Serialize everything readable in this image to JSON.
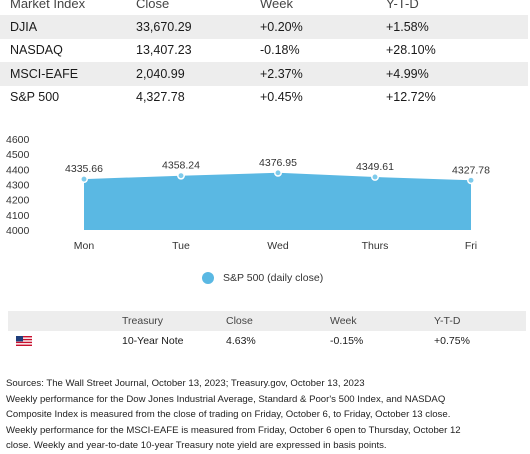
{
  "market_table": {
    "headers": [
      "Market Index",
      "Close",
      "Week",
      "Y-T-D"
    ],
    "rows": [
      {
        "index": "DJIA",
        "close": "33,670.29",
        "week": "+0.20%",
        "ytd": "+1.58%"
      },
      {
        "index": "NASDAQ",
        "close": "13,407.23",
        "week": "-0.18%",
        "ytd": "+28.10%"
      },
      {
        "index": "MSCI-EAFE",
        "close": "2,040.99",
        "week": "+2.37%",
        "ytd": "+4.99%"
      },
      {
        "index": "S&P 500",
        "close": "4,327.78",
        "week": "+0.45%",
        "ytd": "+12.72%"
      }
    ]
  },
  "chart_data": {
    "type": "area",
    "categories": [
      "Mon",
      "Tue",
      "Wed",
      "Thurs",
      "Fri"
    ],
    "series": [
      {
        "name": "S&P 500 (daily close)",
        "values": [
          4335.66,
          4358.24,
          4376.95,
          4349.61,
          4327.78
        ],
        "color": "#5ab8e3"
      }
    ],
    "data_labels": [
      "4335.66",
      "4358.24",
      "4376.95",
      "4349.61",
      "4327.78"
    ],
    "ylim": [
      4000,
      4600
    ],
    "yticks": [
      4000,
      4100,
      4200,
      4300,
      4400,
      4500,
      4600
    ],
    "legend_position": "bottom",
    "grid": false
  },
  "legend": {
    "label": "S&P 500 (daily close)"
  },
  "treasury_table": {
    "headers": [
      "",
      "Treasury",
      "Close",
      "Week",
      "Y-T-D"
    ],
    "row": {
      "flag_icon": "us-flag-icon",
      "name": "10-Year Note",
      "close": "4.63%",
      "week": "-0.15%",
      "ytd": "+0.75%"
    }
  },
  "notes": {
    "sources": "Sources: The Wall Street Journal, October 13, 2023; Treasury.gov, October 13, 2023",
    "line1": "Weekly performance for the Dow Jones Industrial Average, Standard & Poor's 500 Index, and NASDAQ",
    "line2": "Composite Index is measured from the close of trading on Friday, October 6, to Friday, October 13 close.",
    "line3": "Weekly performance for the MSCI-EAFE is measured from Friday, October 6 open to Thursday, October 12",
    "line4": "close. Weekly and year-to-date 10-year Treasury note yield are expressed in basis points."
  },
  "colors": {
    "accent": "#5ab8e3",
    "row_alt": "#ededed"
  }
}
